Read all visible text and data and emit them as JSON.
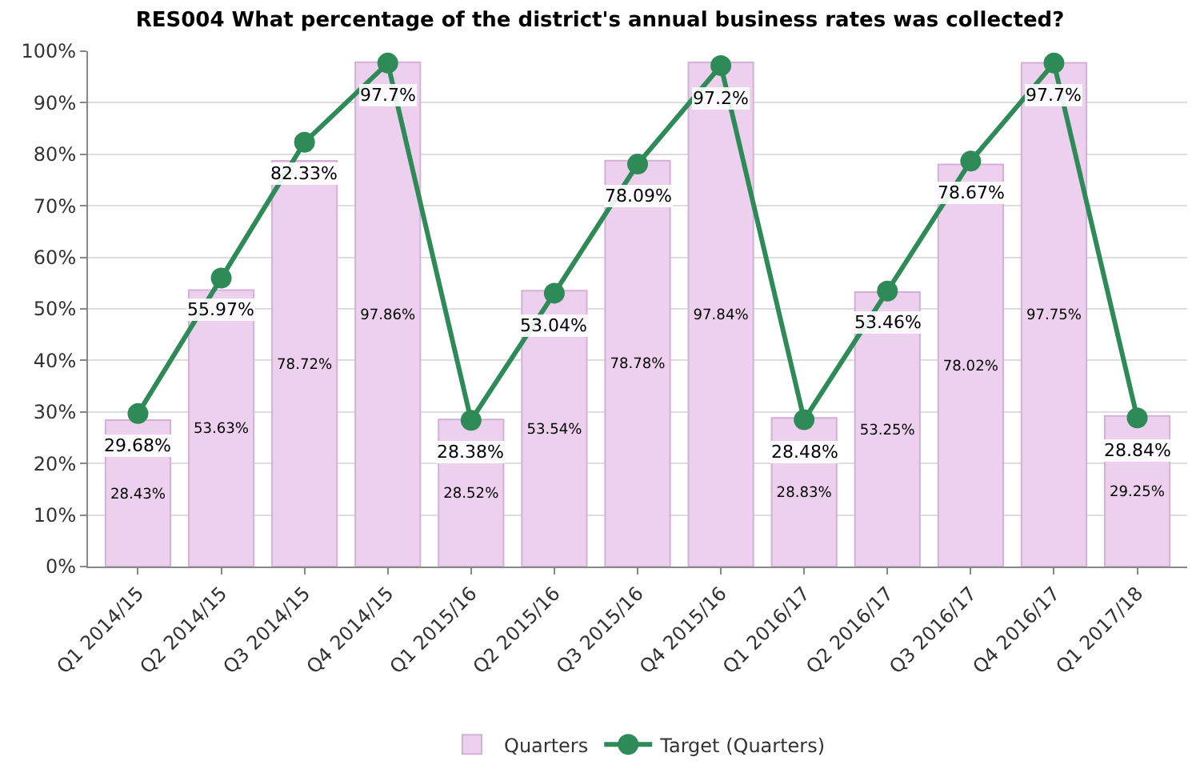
{
  "chart_data": {
    "type": "bar",
    "title": "RES004 What percentage of the district's annual business rates was collected?",
    "categories": [
      "Q1 2014/15",
      "Q2 2014/15",
      "Q3 2014/15",
      "Q4 2014/15",
      "Q1 2015/16",
      "Q2 2015/16",
      "Q3 2015/16",
      "Q4 2015/16",
      "Q1 2016/17",
      "Q2 2016/17",
      "Q3 2016/17",
      "Q4 2016/17",
      "Q1 2017/18"
    ],
    "series": [
      {
        "name": "Quarters",
        "color": "#edd0ee",
        "values": [
          28.43,
          53.63,
          78.72,
          97.86,
          28.52,
          53.54,
          78.78,
          97.84,
          28.83,
          53.25,
          78.02,
          97.75,
          29.25
        ],
        "value_labels": [
          "28.43%",
          "53.63%",
          "78.72%",
          "97.86%",
          "28.52%",
          "53.54%",
          "78.78%",
          "97.84%",
          "28.83%",
          "53.25%",
          "78.02%",
          "97.75%",
          "29.25%"
        ]
      },
      {
        "name": "Target (Quarters)",
        "type": "line",
        "color": "#2e8b57",
        "values": [
          29.68,
          55.97,
          82.33,
          97.7,
          28.38,
          53.04,
          78.09,
          97.2,
          28.48,
          53.46,
          78.67,
          97.7,
          28.84
        ],
        "value_labels": [
          "29.68%",
          "55.97%",
          "82.33%",
          "97.7%",
          "28.38%",
          "53.04%",
          "78.09%",
          "97.2%",
          "28.48%",
          "53.46%",
          "78.67%",
          "97.7%",
          "28.84%"
        ]
      }
    ],
    "ylim": [
      0,
      100
    ],
    "yticks": [
      {
        "value": 0,
        "label": "0%"
      },
      {
        "value": 10,
        "label": "10%"
      },
      {
        "value": 20,
        "label": "20%"
      },
      {
        "value": 30,
        "label": "30%"
      },
      {
        "value": 40,
        "label": "40%"
      },
      {
        "value": 50,
        "label": "50%"
      },
      {
        "value": 60,
        "label": "60%"
      },
      {
        "value": 70,
        "label": "70%"
      },
      {
        "value": 80,
        "label": "80%"
      },
      {
        "value": 90,
        "label": "90%"
      },
      {
        "value": 100,
        "label": "100%"
      }
    ],
    "grid": "y",
    "legend": "bottom",
    "marker": "circle",
    "line_style": "solid"
  }
}
